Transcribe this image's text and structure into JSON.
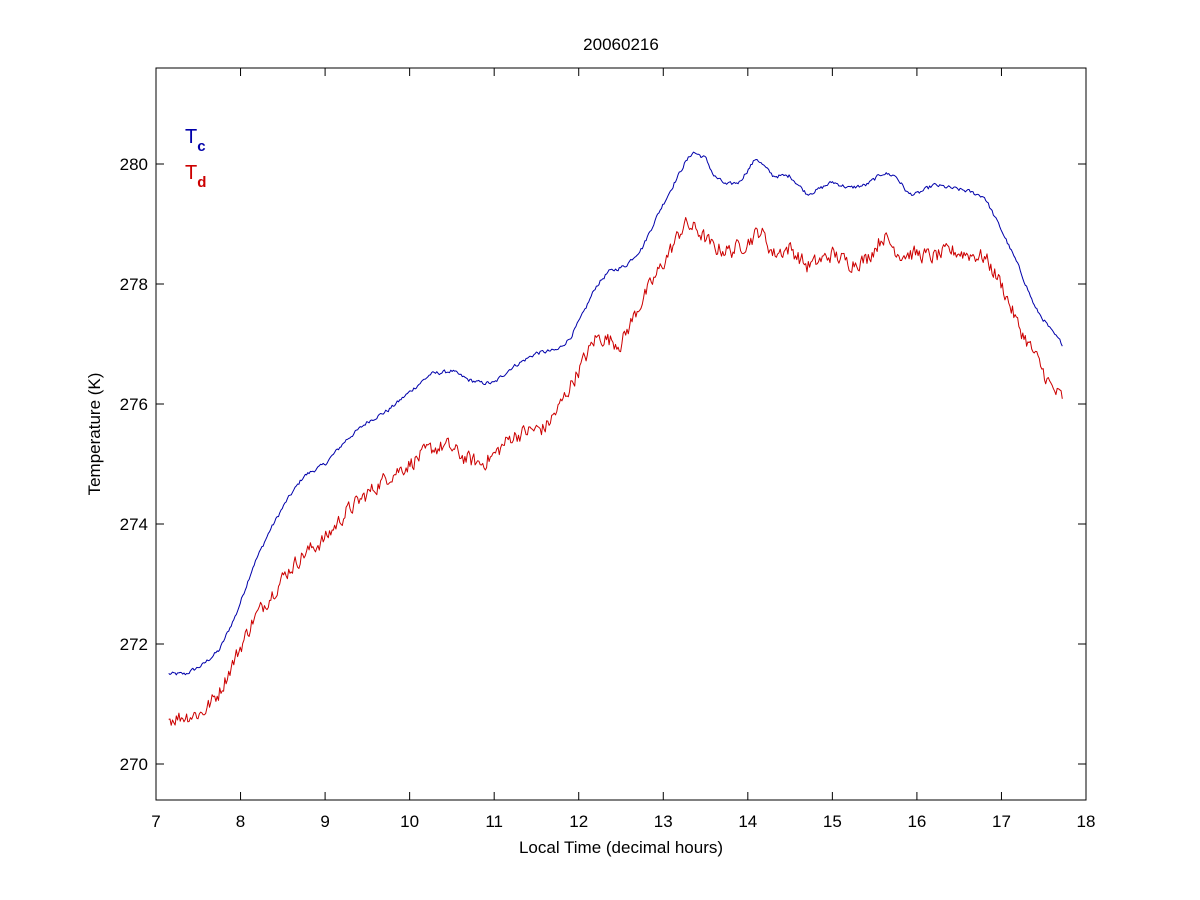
{
  "chart_data": {
    "type": "line",
    "title": "20060216",
    "xlabel": "Local Time (decimal hours)",
    "ylabel": "Temperature (K)",
    "xlim": [
      7,
      18
    ],
    "ylim": [
      269.4,
      281.6
    ],
    "xticks": [
      7,
      8,
      9,
      10,
      11,
      12,
      13,
      14,
      15,
      16,
      17,
      18
    ],
    "yticks": [
      270,
      272,
      274,
      276,
      278,
      280
    ],
    "grid": false,
    "legend_position": "top-left",
    "series": [
      {
        "name": "T",
        "name_subscript": "c",
        "color": "#0000aa",
        "noise": 0.03,
        "x": [
          7.15,
          7.35,
          7.55,
          7.75,
          7.95,
          8.15,
          8.35,
          8.55,
          8.75,
          9.0,
          9.25,
          9.5,
          9.75,
          10.0,
          10.25,
          10.5,
          10.7,
          10.85,
          11.0,
          11.2,
          11.5,
          11.75,
          11.9,
          12.05,
          12.2,
          12.35,
          12.55,
          12.75,
          12.95,
          13.1,
          13.25,
          13.35,
          13.5,
          13.6,
          13.75,
          13.9,
          14.1,
          14.3,
          14.5,
          14.7,
          14.8,
          15.0,
          15.2,
          15.4,
          15.6,
          15.75,
          15.9,
          16.0,
          16.2,
          16.4,
          16.6,
          16.8,
          17.0,
          17.2,
          17.4,
          17.6,
          17.72
        ],
        "values": [
          271.5,
          271.5,
          271.65,
          271.9,
          272.5,
          273.3,
          273.9,
          274.4,
          274.8,
          275.0,
          275.4,
          275.7,
          275.9,
          276.2,
          276.5,
          276.55,
          276.4,
          276.35,
          276.35,
          276.6,
          276.85,
          276.9,
          277.1,
          277.5,
          277.95,
          278.2,
          278.3,
          278.6,
          279.2,
          279.6,
          280.0,
          280.2,
          280.1,
          279.8,
          279.65,
          279.7,
          280.1,
          279.8,
          279.8,
          279.5,
          279.55,
          279.7,
          279.6,
          279.65,
          279.85,
          279.8,
          279.5,
          279.5,
          279.65,
          279.6,
          279.55,
          279.45,
          278.9,
          278.3,
          277.6,
          277.2,
          277.0
        ]
      },
      {
        "name": "T",
        "name_subscript": "d",
        "color": "#cc0000",
        "noise": 0.12,
        "x": [
          7.15,
          7.35,
          7.55,
          7.75,
          7.95,
          8.15,
          8.35,
          8.55,
          8.75,
          9.0,
          9.25,
          9.5,
          9.75,
          10.0,
          10.25,
          10.45,
          10.65,
          10.85,
          11.0,
          11.2,
          11.4,
          11.6,
          11.75,
          11.9,
          12.05,
          12.2,
          12.3,
          12.5,
          12.7,
          12.9,
          13.1,
          13.25,
          13.4,
          13.6,
          13.8,
          14.0,
          14.15,
          14.3,
          14.5,
          14.7,
          14.8,
          15.0,
          15.2,
          15.4,
          15.6,
          15.8,
          16.0,
          16.2,
          16.4,
          16.6,
          16.8,
          17.0,
          17.2,
          17.4,
          17.6,
          17.72
        ],
        "values": [
          270.75,
          270.8,
          270.85,
          271.2,
          271.8,
          272.4,
          272.8,
          273.2,
          273.5,
          273.75,
          274.2,
          274.5,
          274.8,
          275.0,
          275.25,
          275.3,
          275.1,
          275.0,
          275.15,
          275.45,
          275.55,
          275.6,
          275.9,
          276.3,
          276.7,
          277.1,
          277.1,
          277.0,
          277.6,
          278.1,
          278.6,
          279.0,
          278.9,
          278.6,
          278.55,
          278.7,
          278.9,
          278.5,
          278.6,
          278.3,
          278.35,
          278.5,
          278.35,
          278.4,
          278.8,
          278.5,
          278.5,
          278.45,
          278.55,
          278.5,
          278.45,
          278.0,
          277.3,
          276.8,
          276.25,
          276.1
        ]
      }
    ]
  }
}
